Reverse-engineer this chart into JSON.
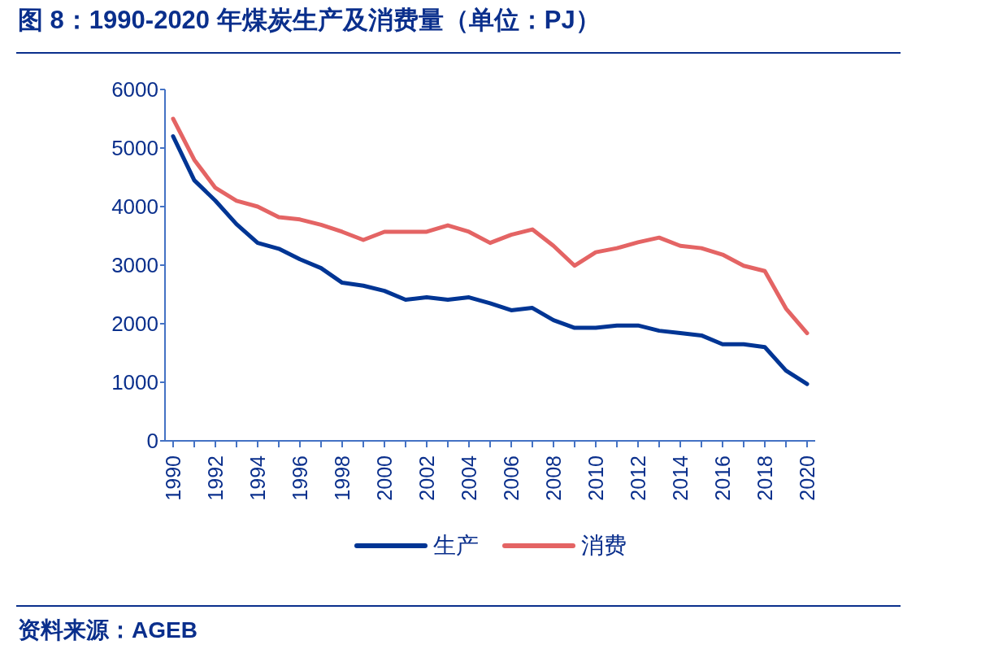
{
  "chart_data": {
    "type": "line",
    "title": "图 8：1990-2020 年煤炭生产及消费量（单位：PJ）",
    "categories": [
      "1990",
      null,
      "1992",
      null,
      "1994",
      null,
      "1996",
      null,
      "1998",
      null,
      "2000",
      null,
      "2002",
      null,
      "2004",
      null,
      "2006",
      null,
      "2008",
      null,
      "2010",
      null,
      "2012",
      null,
      "2014",
      null,
      "2016",
      null,
      "2018",
      null,
      "2020"
    ],
    "series": [
      {
        "name": "生产",
        "color": "#003594",
        "values": [
          5200,
          4450,
          4100,
          3700,
          3380,
          3280,
          3100,
          2950,
          2700,
          2650,
          2560,
          2410,
          2450,
          2410,
          2450,
          2350,
          2230,
          2270,
          2060,
          1930,
          1930,
          1970,
          1970,
          1880,
          1840,
          1800,
          1650,
          1650,
          1600,
          1200,
          970
        ]
      },
      {
        "name": "消费",
        "color": "#e46464",
        "values": [
          5500,
          4800,
          4320,
          4100,
          4000,
          3820,
          3780,
          3690,
          3570,
          3430,
          3570,
          3570,
          3570,
          3680,
          3570,
          3380,
          3520,
          3610,
          3330,
          2990,
          3220,
          3290,
          3390,
          3470,
          3330,
          3290,
          3180,
          2990,
          2900,
          2260,
          1840
        ]
      }
    ],
    "ylim": [
      0,
      6000
    ],
    "yticks": [
      0,
      1000,
      2000,
      3000,
      4000,
      5000,
      6000
    ],
    "grid": false,
    "legend": "bottom",
    "marker": "none",
    "line_style": "solid",
    "annotations": [
      "资料来源：AGEB"
    ]
  }
}
